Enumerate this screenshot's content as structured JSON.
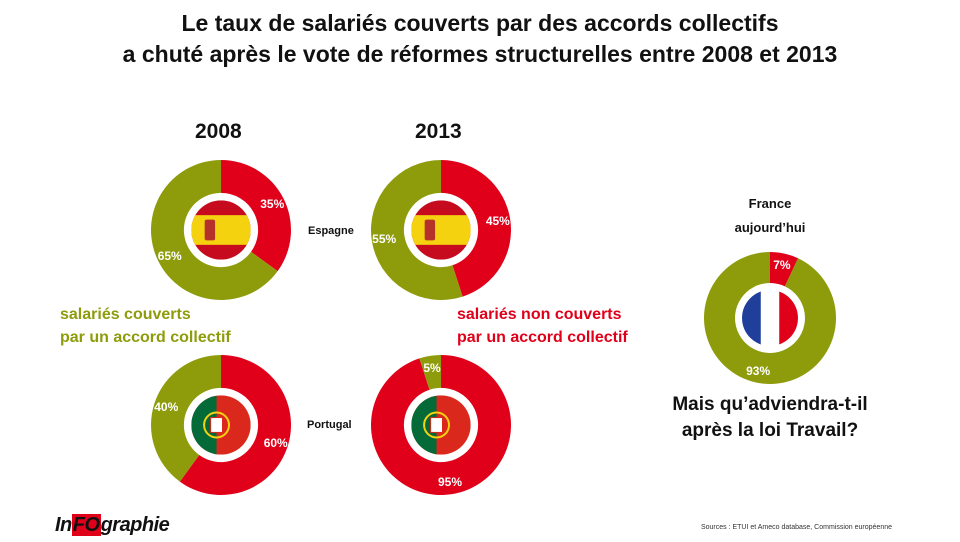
{
  "chart_data": {
    "type": "pie",
    "title": "Le taux de salariés couverts par des accords collectifs a chuté après le vote de réformes structurelles entre 2008 et 2013",
    "title_lines": [
      "Le taux de salariés couverts par des accords collectifs",
      "a chuté après le vote de réformes structurelles entre 2008 et 2013"
    ],
    "colors": {
      "covered": "#8e9c0c",
      "not_covered": "#e1001a"
    },
    "legend": {
      "covered": [
        "salariés couverts",
        "par un accord collectif"
      ],
      "not_covered": [
        "salariés non couverts",
        "par un accord collectif"
      ]
    },
    "years": [
      "2008",
      "2013"
    ],
    "countries": [
      "Espagne",
      "Portugal"
    ],
    "donuts": [
      {
        "country": "Espagne",
        "year": "2008",
        "covered": 65,
        "not_covered": 35,
        "covered_label": "65%",
        "not_covered_label": "35%",
        "flag": "spain"
      },
      {
        "country": "Espagne",
        "year": "2013",
        "covered": 55,
        "not_covered": 45,
        "covered_label": "55%",
        "not_covered_label": "45%",
        "flag": "spain"
      },
      {
        "country": "Portugal",
        "year": "2008",
        "covered": 40,
        "not_covered": 60,
        "covered_label": "40%",
        "not_covered_label": "60%",
        "flag": "portugal"
      },
      {
        "country": "Portugal",
        "year": "2013",
        "covered": 5,
        "not_covered": 95,
        "covered_label": "5%",
        "not_covered_label": "95%",
        "flag": "portugal"
      },
      {
        "country": "France",
        "year": "aujourd'hui",
        "covered": 93,
        "not_covered": 7,
        "covered_label": "93%",
        "not_covered_label": "7%",
        "flag": "france"
      }
    ]
  },
  "france": {
    "line1": "France",
    "line2": "aujourd’hui"
  },
  "question": {
    "line1": "Mais qu’adviendra-t-il",
    "line2": "après la loi Travail?"
  },
  "logo": {
    "pre": "In",
    "fo": "FO",
    "post": "graphie"
  },
  "source": "Sources : ETUI et Ameco database, Commission européenne"
}
